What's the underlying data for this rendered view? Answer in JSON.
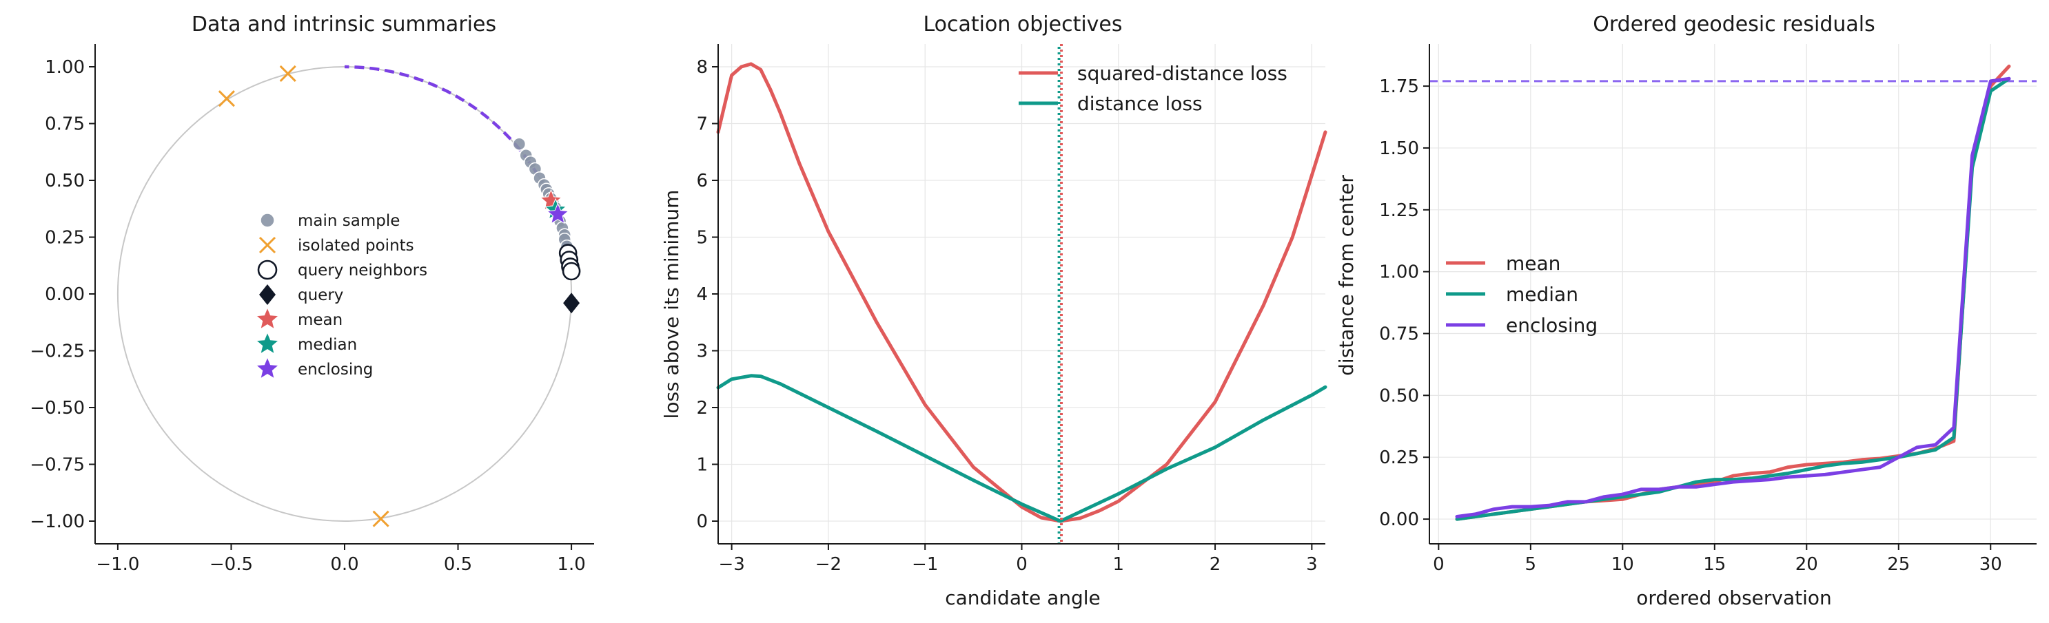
{
  "colors": {
    "mean": "#e05a5a",
    "median": "#0f9a8a",
    "enclosing": "#7b3fe4",
    "main_sample": "#8894a5",
    "isolated": "#f0a030",
    "query": "#111827",
    "arc_dashed": "#7b3fe4",
    "circle": "#c7c7c7",
    "hline": "#8b66f0"
  },
  "chart_data": [
    {
      "type": "scatter",
      "title": "Data and intrinsic summaries",
      "xlabel": "",
      "ylabel": "",
      "xlim": [
        -1.1,
        1.1
      ],
      "ylim": [
        -1.1,
        1.1
      ],
      "xticks": [
        -1.0,
        -0.5,
        0.0,
        0.5,
        1.0
      ],
      "xtick_labels": [
        "−1.0",
        "−0.5",
        "0.0",
        "0.5",
        "1.0"
      ],
      "yticks": [
        1.0,
        0.75,
        0.5,
        0.25,
        0.0,
        -0.25,
        -0.5,
        -0.75,
        -1.0
      ],
      "ytick_labels": [
        "1.00",
        "0.75",
        "0.50",
        "0.25",
        "0.00",
        "−0.25",
        "−0.50",
        "−0.75",
        "−1.00"
      ],
      "grid": false,
      "legend_position": "center",
      "unit_circle": true,
      "dashed_arc_deg": [
        20,
        90
      ],
      "legend": [
        "main sample",
        "isolated points",
        "query neighbors",
        "query",
        "mean",
        "median",
        "enclosing"
      ],
      "series": [
        {
          "name": "main sample",
          "marker": "circle",
          "x": [
            0.77,
            0.8,
            0.82,
            0.84,
            0.86,
            0.88,
            0.89,
            0.9,
            0.91,
            0.92,
            0.93,
            0.94,
            0.95,
            0.96,
            0.97,
            0.97,
            0.98,
            0.99,
            0.99,
            1.0
          ],
          "y": [
            0.66,
            0.61,
            0.58,
            0.55,
            0.51,
            0.48,
            0.46,
            0.44,
            0.42,
            0.4,
            0.38,
            0.35,
            0.32,
            0.29,
            0.26,
            0.24,
            0.21,
            0.18,
            0.15,
            0.12
          ]
        },
        {
          "name": "isolated points",
          "marker": "x",
          "x": [
            -0.52,
            -0.25,
            0.16
          ],
          "y": [
            0.86,
            0.97,
            -0.99
          ]
        },
        {
          "name": "query neighbors",
          "marker": "hollow-circle",
          "x": [
            0.985,
            0.99,
            0.995,
            1.0
          ],
          "y": [
            0.18,
            0.15,
            0.12,
            0.1
          ]
        },
        {
          "name": "query",
          "marker": "diamond",
          "x": [
            1.0
          ],
          "y": [
            -0.04
          ]
        },
        {
          "name": "mean",
          "marker": "star",
          "x": [
            0.91
          ],
          "y": [
            0.41
          ]
        },
        {
          "name": "median",
          "marker": "star",
          "x": [
            0.93
          ],
          "y": [
            0.37
          ]
        },
        {
          "name": "enclosing",
          "marker": "star",
          "x": [
            0.94
          ],
          "y": [
            0.35
          ]
        }
      ]
    },
    {
      "type": "line",
      "title": "Location objectives",
      "xlabel": "candidate angle",
      "ylabel": "loss above its minimum",
      "xlim": [
        -3.14,
        3.14
      ],
      "ylim": [
        -0.4,
        8.4
      ],
      "xticks": [
        -3,
        -2,
        -1,
        0,
        1,
        2,
        3
      ],
      "xtick_labels": [
        "−3",
        "−2",
        "−1",
        "0",
        "1",
        "2",
        "3"
      ],
      "yticks": [
        0,
        1,
        2,
        3,
        4,
        5,
        6,
        7,
        8
      ],
      "ytick_labels": [
        "0",
        "1",
        "2",
        "3",
        "4",
        "5",
        "6",
        "7",
        "8"
      ],
      "grid": true,
      "legend_position": "top-right",
      "vlines": [
        0.41,
        0.4
      ],
      "series": [
        {
          "name": "squared-distance loss",
          "x": [
            -3.14,
            -3.0,
            -2.9,
            -2.8,
            -2.7,
            -2.6,
            -2.5,
            -2.3,
            -2.0,
            -1.5,
            -1.0,
            -0.5,
            0.0,
            0.2,
            0.4,
            0.6,
            0.8,
            1.0,
            1.5,
            2.0,
            2.5,
            2.8,
            3.14
          ],
          "y": [
            6.85,
            7.85,
            8.0,
            8.05,
            7.95,
            7.6,
            7.2,
            6.3,
            5.1,
            3.5,
            2.05,
            0.95,
            0.25,
            0.06,
            0.0,
            0.05,
            0.18,
            0.35,
            1.0,
            2.1,
            3.8,
            5.0,
            6.85
          ]
        },
        {
          "name": "distance loss",
          "x": [
            -3.14,
            -3.0,
            -2.8,
            -2.7,
            -2.5,
            -2.0,
            -1.5,
            -1.0,
            -0.5,
            0.0,
            0.4,
            1.0,
            1.5,
            2.0,
            2.5,
            3.0,
            3.14
          ],
          "y": [
            2.35,
            2.5,
            2.56,
            2.55,
            2.42,
            2.0,
            1.58,
            1.15,
            0.72,
            0.3,
            0.0,
            0.48,
            0.92,
            1.3,
            1.78,
            2.22,
            2.36
          ]
        }
      ]
    },
    {
      "type": "line",
      "title": "Ordered geodesic residuals",
      "xlabel": "ordered observation",
      "ylabel": "distance from center",
      "xlim": [
        -0.5,
        32.5
      ],
      "ylim": [
        -0.1,
        1.92
      ],
      "xticks": [
        0,
        5,
        10,
        15,
        20,
        25,
        30
      ],
      "xtick_labels": [
        "0",
        "5",
        "10",
        "15",
        "20",
        "25",
        "30"
      ],
      "yticks": [
        0.0,
        0.25,
        0.5,
        0.75,
        1.0,
        1.25,
        1.5,
        1.75
      ],
      "ytick_labels": [
        "0.00",
        "0.25",
        "0.50",
        "0.75",
        "1.00",
        "1.25",
        "1.50",
        "1.75"
      ],
      "grid": true,
      "legend_position": "center-left",
      "hline": 1.77,
      "x": [
        1,
        2,
        3,
        4,
        5,
        6,
        7,
        8,
        9,
        10,
        11,
        12,
        13,
        14,
        15,
        16,
        17,
        18,
        19,
        20,
        21,
        22,
        23,
        24,
        25,
        26,
        27,
        28,
        29,
        30,
        31
      ],
      "series": [
        {
          "name": "mean",
          "values": [
            0.0,
            0.01,
            0.02,
            0.03,
            0.04,
            0.05,
            0.06,
            0.07,
            0.075,
            0.08,
            0.1,
            0.12,
            0.13,
            0.14,
            0.15,
            0.175,
            0.185,
            0.19,
            0.21,
            0.22,
            0.225,
            0.23,
            0.24,
            0.245,
            0.255,
            0.265,
            0.285,
            0.315,
            1.44,
            1.75,
            1.83
          ]
        },
        {
          "name": "median",
          "values": [
            0.0,
            0.01,
            0.02,
            0.03,
            0.04,
            0.05,
            0.06,
            0.07,
            0.08,
            0.09,
            0.1,
            0.11,
            0.13,
            0.15,
            0.16,
            0.16,
            0.165,
            0.175,
            0.185,
            0.2,
            0.215,
            0.225,
            0.23,
            0.24,
            0.25,
            0.265,
            0.28,
            0.33,
            1.42,
            1.73,
            1.78
          ]
        },
        {
          "name": "enclosing",
          "values": [
            0.01,
            0.02,
            0.04,
            0.05,
            0.05,
            0.055,
            0.07,
            0.07,
            0.09,
            0.1,
            0.12,
            0.12,
            0.13,
            0.13,
            0.14,
            0.15,
            0.155,
            0.16,
            0.17,
            0.175,
            0.18,
            0.19,
            0.2,
            0.21,
            0.25,
            0.29,
            0.3,
            0.37,
            1.47,
            1.77,
            1.78
          ]
        }
      ]
    }
  ]
}
